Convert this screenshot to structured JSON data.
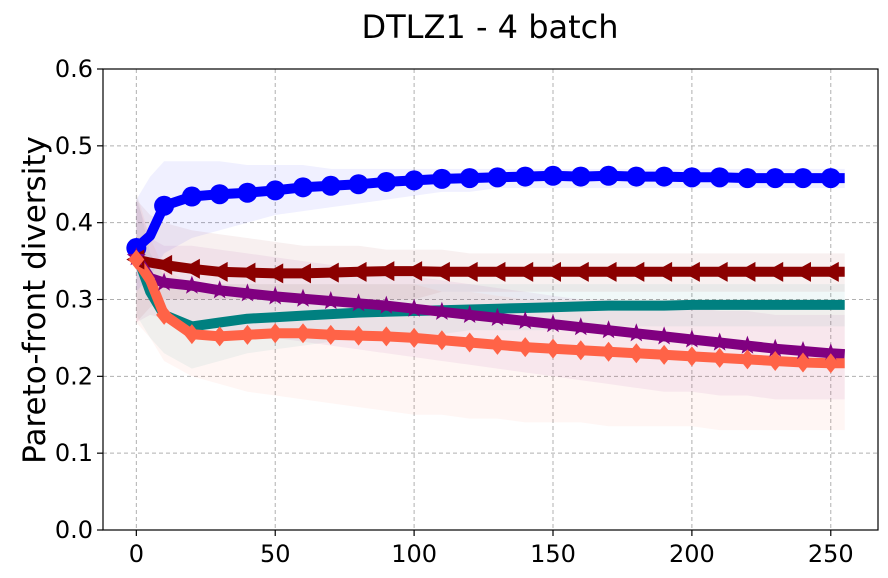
{
  "chart_data": {
    "type": "line",
    "title": "DTLZ1 - 4 batch",
    "xlabel": "",
    "ylabel": "Pareto-front diversity",
    "xlim": [
      -12,
      267
    ],
    "ylim": [
      0,
      0.6
    ],
    "xticks": [
      0,
      50,
      100,
      150,
      200,
      250
    ],
    "yticks": [
      0.0,
      0.1,
      0.2,
      0.3,
      0.4,
      0.5,
      0.6
    ],
    "xtick_labels": [
      "0",
      "50",
      "100",
      "150",
      "200",
      "250"
    ],
    "ytick_labels": [
      "0.0",
      "0.1",
      "0.2",
      "0.3",
      "0.4",
      "0.5",
      "0.6"
    ],
    "grid": true,
    "series": [
      {
        "name": "blue-circle",
        "color": "#0000ff",
        "marker": "circle",
        "x": [
          0,
          5,
          10,
          20,
          30,
          40,
          50,
          60,
          70,
          80,
          90,
          100,
          110,
          120,
          130,
          140,
          150,
          160,
          170,
          180,
          190,
          200,
          210,
          220,
          230,
          240,
          250,
          255
        ],
        "y": [
          0.367,
          0.383,
          0.422,
          0.434,
          0.437,
          0.439,
          0.442,
          0.446,
          0.448,
          0.45,
          0.453,
          0.455,
          0.457,
          0.458,
          0.459,
          0.46,
          0.461,
          0.46,
          0.461,
          0.46,
          0.46,
          0.459,
          0.459,
          0.458,
          0.458,
          0.458,
          0.458,
          0.458
        ],
        "band_upper": [
          0.43,
          0.46,
          0.48,
          0.48,
          0.48,
          0.475,
          0.475,
          0.475,
          0.47,
          0.47,
          0.47,
          0.47,
          0.47,
          0.47,
          0.47,
          0.47,
          0.47,
          0.47,
          0.47,
          0.47,
          0.47,
          0.47,
          0.47,
          0.47,
          0.47,
          0.47,
          0.47,
          0.47
        ],
        "band_lower": [
          0.31,
          0.33,
          0.36,
          0.38,
          0.39,
          0.4,
          0.41,
          0.415,
          0.42,
          0.425,
          0.43,
          0.435,
          0.44,
          0.44,
          0.445,
          0.445,
          0.445,
          0.445,
          0.445,
          0.445,
          0.445,
          0.445,
          0.445,
          0.445,
          0.445,
          0.445,
          0.445,
          0.445
        ]
      },
      {
        "name": "darkred-triangle",
        "color": "#8b0000",
        "marker": "triangle-left",
        "x": [
          0,
          5,
          10,
          20,
          30,
          40,
          50,
          60,
          70,
          80,
          90,
          100,
          110,
          120,
          130,
          140,
          150,
          160,
          170,
          180,
          190,
          200,
          210,
          220,
          230,
          240,
          250,
          255
        ],
        "y": [
          0.352,
          0.348,
          0.345,
          0.34,
          0.336,
          0.335,
          0.334,
          0.334,
          0.335,
          0.336,
          0.337,
          0.337,
          0.336,
          0.336,
          0.336,
          0.336,
          0.336,
          0.336,
          0.336,
          0.336,
          0.336,
          0.336,
          0.336,
          0.336,
          0.336,
          0.336,
          0.336,
          0.336
        ],
        "band_upper": [
          0.43,
          0.41,
          0.4,
          0.39,
          0.385,
          0.38,
          0.375,
          0.37,
          0.37,
          0.37,
          0.365,
          0.365,
          0.365,
          0.36,
          0.36,
          0.36,
          0.36,
          0.36,
          0.36,
          0.36,
          0.36,
          0.36,
          0.36,
          0.36,
          0.36,
          0.36,
          0.36,
          0.36
        ],
        "band_lower": [
          0.27,
          0.29,
          0.3,
          0.3,
          0.3,
          0.3,
          0.3,
          0.3,
          0.3,
          0.3,
          0.3,
          0.3,
          0.31,
          0.31,
          0.31,
          0.31,
          0.31,
          0.31,
          0.31,
          0.31,
          0.31,
          0.31,
          0.31,
          0.31,
          0.31,
          0.31,
          0.31,
          0.31
        ]
      },
      {
        "name": "teal",
        "color": "#008080",
        "marker": "none",
        "x": [
          0,
          5,
          10,
          20,
          30,
          40,
          50,
          60,
          70,
          80,
          90,
          100,
          110,
          120,
          130,
          140,
          150,
          160,
          170,
          180,
          190,
          200,
          210,
          220,
          230,
          240,
          250,
          255
        ],
        "y": [
          0.36,
          0.31,
          0.28,
          0.265,
          0.27,
          0.275,
          0.277,
          0.279,
          0.281,
          0.283,
          0.284,
          0.285,
          0.286,
          0.287,
          0.288,
          0.289,
          0.29,
          0.291,
          0.292,
          0.292,
          0.292,
          0.293,
          0.293,
          0.293,
          0.293,
          0.293,
          0.293,
          0.293
        ],
        "band_upper": [
          0.44,
          0.36,
          0.33,
          0.32,
          0.32,
          0.32,
          0.32,
          0.32,
          0.32,
          0.32,
          0.32,
          0.32,
          0.32,
          0.32,
          0.32,
          0.32,
          0.32,
          0.32,
          0.32,
          0.32,
          0.32,
          0.32,
          0.32,
          0.32,
          0.32,
          0.32,
          0.32,
          0.32
        ],
        "band_lower": [
          0.28,
          0.25,
          0.23,
          0.21,
          0.22,
          0.23,
          0.235,
          0.24,
          0.245,
          0.25,
          0.25,
          0.255,
          0.255,
          0.26,
          0.26,
          0.26,
          0.26,
          0.265,
          0.265,
          0.265,
          0.265,
          0.265,
          0.265,
          0.265,
          0.265,
          0.265,
          0.265,
          0.265
        ]
      },
      {
        "name": "purple-star",
        "color": "#800080",
        "marker": "star",
        "x": [
          0,
          5,
          10,
          20,
          30,
          40,
          50,
          60,
          70,
          80,
          90,
          100,
          110,
          120,
          130,
          140,
          150,
          160,
          170,
          180,
          190,
          200,
          210,
          220,
          230,
          240,
          250,
          255
        ],
        "y": [
          0.355,
          0.328,
          0.322,
          0.318,
          0.312,
          0.308,
          0.304,
          0.301,
          0.298,
          0.295,
          0.292,
          0.288,
          0.284,
          0.28,
          0.276,
          0.272,
          0.268,
          0.264,
          0.26,
          0.256,
          0.252,
          0.248,
          0.244,
          0.24,
          0.236,
          0.233,
          0.23,
          0.229
        ],
        "band_upper": [
          0.43,
          0.38,
          0.37,
          0.37,
          0.365,
          0.36,
          0.355,
          0.35,
          0.345,
          0.34,
          0.335,
          0.33,
          0.325,
          0.32,
          0.315,
          0.31,
          0.305,
          0.3,
          0.3,
          0.295,
          0.29,
          0.29,
          0.285,
          0.285,
          0.28,
          0.28,
          0.28,
          0.28
        ],
        "band_lower": [
          0.27,
          0.28,
          0.275,
          0.27,
          0.26,
          0.255,
          0.25,
          0.245,
          0.24,
          0.235,
          0.23,
          0.225,
          0.22,
          0.215,
          0.21,
          0.205,
          0.2,
          0.195,
          0.19,
          0.185,
          0.18,
          0.18,
          0.175,
          0.175,
          0.17,
          0.17,
          0.17,
          0.17
        ]
      },
      {
        "name": "tomato-diamond",
        "color": "#ff6347",
        "marker": "diamond",
        "x": [
          0,
          5,
          10,
          20,
          30,
          40,
          50,
          60,
          70,
          80,
          90,
          100,
          110,
          120,
          130,
          140,
          150,
          160,
          170,
          180,
          190,
          200,
          210,
          220,
          230,
          240,
          250,
          255
        ],
        "y": [
          0.352,
          0.325,
          0.28,
          0.255,
          0.252,
          0.254,
          0.256,
          0.256,
          0.254,
          0.253,
          0.252,
          0.25,
          0.247,
          0.244,
          0.241,
          0.238,
          0.236,
          0.234,
          0.232,
          0.23,
          0.228,
          0.226,
          0.224,
          0.222,
          0.22,
          0.218,
          0.217,
          0.217
        ],
        "band_upper": [
          0.44,
          0.38,
          0.34,
          0.32,
          0.32,
          0.32,
          0.32,
          0.32,
          0.32,
          0.32,
          0.32,
          0.32,
          0.31,
          0.31,
          0.305,
          0.3,
          0.3,
          0.3,
          0.3,
          0.3,
          0.3,
          0.3,
          0.3,
          0.3,
          0.3,
          0.3,
          0.3,
          0.3
        ],
        "band_lower": [
          0.27,
          0.25,
          0.22,
          0.2,
          0.19,
          0.18,
          0.175,
          0.17,
          0.165,
          0.16,
          0.155,
          0.15,
          0.15,
          0.145,
          0.145,
          0.14,
          0.14,
          0.14,
          0.135,
          0.135,
          0.135,
          0.135,
          0.13,
          0.13,
          0.13,
          0.13,
          0.13,
          0.13
        ]
      }
    ]
  }
}
